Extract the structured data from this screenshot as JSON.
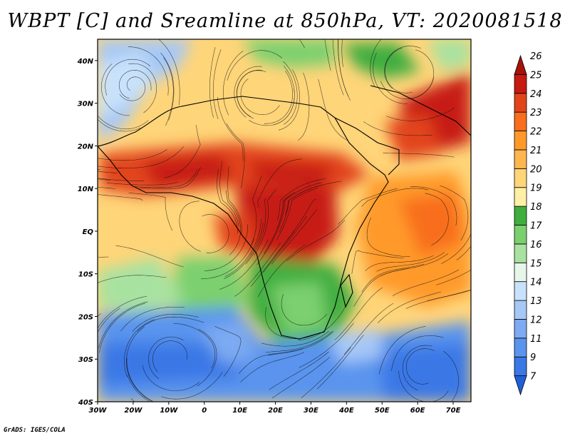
{
  "title": "WBPT [C] and Sreamline at 850hPa, VT: 2020081518",
  "credit": "GrADS: IGES/COLA",
  "map": {
    "lon_ticks": [
      "30W",
      "20W",
      "10W",
      "0",
      "10E",
      "20E",
      "30E",
      "40E",
      "50E",
      "60E",
      "70E"
    ],
    "lat_ticks": [
      "40N",
      "30N",
      "20N",
      "10N",
      "EQ",
      "10S",
      "20S",
      "30S",
      "40S"
    ],
    "lon_range": [
      -30,
      75
    ],
    "lat_range": [
      -40,
      45
    ]
  },
  "colorbar": {
    "levels": [
      "7",
      "9",
      "11",
      "12",
      "13",
      "14",
      "15",
      "16",
      "17",
      "18",
      "19",
      "20",
      "21",
      "22",
      "23",
      "24",
      "25",
      "26"
    ],
    "colors": [
      "#1f5fd8",
      "#3a78e6",
      "#5a94ee",
      "#7daaf2",
      "#a6c8f7",
      "#c8e2fb",
      "#e6f6ea",
      "#a8e2a0",
      "#7bd06e",
      "#3fae3f",
      "#fff0a6",
      "#ffd579",
      "#ffb64f",
      "#ff9a2a",
      "#f86e1c",
      "#e2451a",
      "#c71a12",
      "#a51208"
    ]
  },
  "colors": {
    "wbpt_cool": "#3a78e6",
    "wbpt_mid": "#7bd06e",
    "wbpt_warm": "#ffb64f",
    "wbpt_hot": "#d2301a"
  }
}
